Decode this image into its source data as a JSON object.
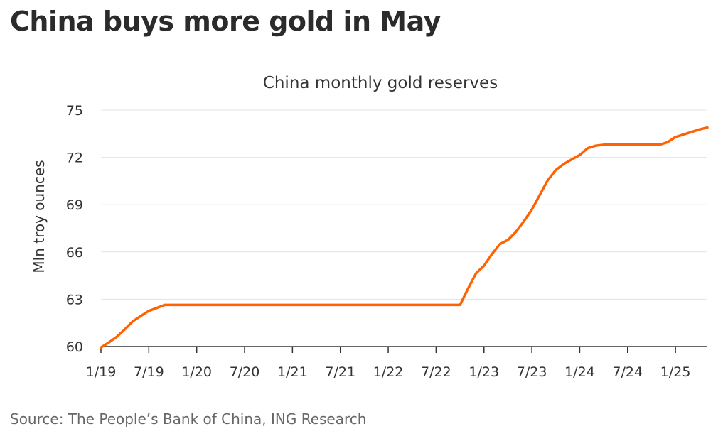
{
  "headline": "China buys more gold in May",
  "source": "Source: The People’s Bank of China, ING Research",
  "colors": {
    "line": "#ff6200",
    "grid": "#e3e3e3",
    "axis": "#333333",
    "text": "#333333"
  },
  "chart_data": {
    "type": "line",
    "title": "China monthly gold reserves",
    "xlabel": "",
    "ylabel": "Mln troy ounces",
    "ylim": [
      60,
      75
    ],
    "yticks": [
      60,
      63,
      66,
      69,
      72,
      75
    ],
    "xlim": [
      "2019-01",
      "2025-05"
    ],
    "xticks": [
      "1/19",
      "7/19",
      "1/20",
      "7/20",
      "1/21",
      "7/21",
      "1/22",
      "7/22",
      "1/23",
      "7/23",
      "1/24",
      "7/24",
      "1/25"
    ],
    "grid": true,
    "legend": "none",
    "series": [
      {
        "x": [
          "2019-01",
          "2019-02",
          "2019-03",
          "2019-04",
          "2019-05",
          "2019-06",
          "2019-07",
          "2019-08",
          "2019-09",
          "2019-10",
          "2019-11",
          "2019-12",
          "2020-01",
          "2020-02",
          "2020-03",
          "2020-04",
          "2020-05",
          "2020-06",
          "2020-07",
          "2020-08",
          "2020-09",
          "2020-10",
          "2020-11",
          "2020-12",
          "2021-01",
          "2021-02",
          "2021-03",
          "2021-04",
          "2021-05",
          "2021-06",
          "2021-07",
          "2021-08",
          "2021-09",
          "2021-10",
          "2021-11",
          "2021-12",
          "2022-01",
          "2022-02",
          "2022-03",
          "2022-04",
          "2022-05",
          "2022-06",
          "2022-07",
          "2022-08",
          "2022-09",
          "2022-10",
          "2022-11",
          "2022-12",
          "2023-01",
          "2023-02",
          "2023-03",
          "2023-04",
          "2023-05",
          "2023-06",
          "2023-07",
          "2023-08",
          "2023-09",
          "2023-10",
          "2023-11",
          "2023-12",
          "2024-01",
          "2024-02",
          "2024-03",
          "2024-04",
          "2024-05",
          "2024-06",
          "2024-07",
          "2024-08",
          "2024-09",
          "2024-10",
          "2024-11",
          "2024-12",
          "2025-01",
          "2025-02",
          "2025-03",
          "2025-04",
          "2025-05"
        ],
        "y": [
          59.94,
          60.26,
          60.62,
          61.1,
          61.61,
          61.94,
          62.26,
          62.45,
          62.64,
          62.64,
          62.64,
          62.64,
          62.64,
          62.64,
          62.64,
          62.64,
          62.64,
          62.64,
          62.64,
          62.64,
          62.64,
          62.64,
          62.64,
          62.64,
          62.64,
          62.64,
          62.64,
          62.64,
          62.64,
          62.64,
          62.64,
          62.64,
          62.64,
          62.64,
          62.64,
          62.64,
          62.64,
          62.64,
          62.64,
          62.64,
          62.64,
          62.64,
          62.64,
          62.64,
          62.64,
          62.64,
          63.67,
          64.64,
          65.12,
          65.87,
          66.5,
          66.76,
          67.27,
          67.95,
          68.69,
          69.62,
          70.55,
          71.2,
          71.58,
          71.87,
          72.15,
          72.58,
          72.74,
          72.8,
          72.8,
          72.8,
          72.8,
          72.8,
          72.8,
          72.8,
          72.8,
          72.96,
          73.29,
          73.45,
          73.61,
          73.77,
          73.89
        ]
      }
    ]
  }
}
